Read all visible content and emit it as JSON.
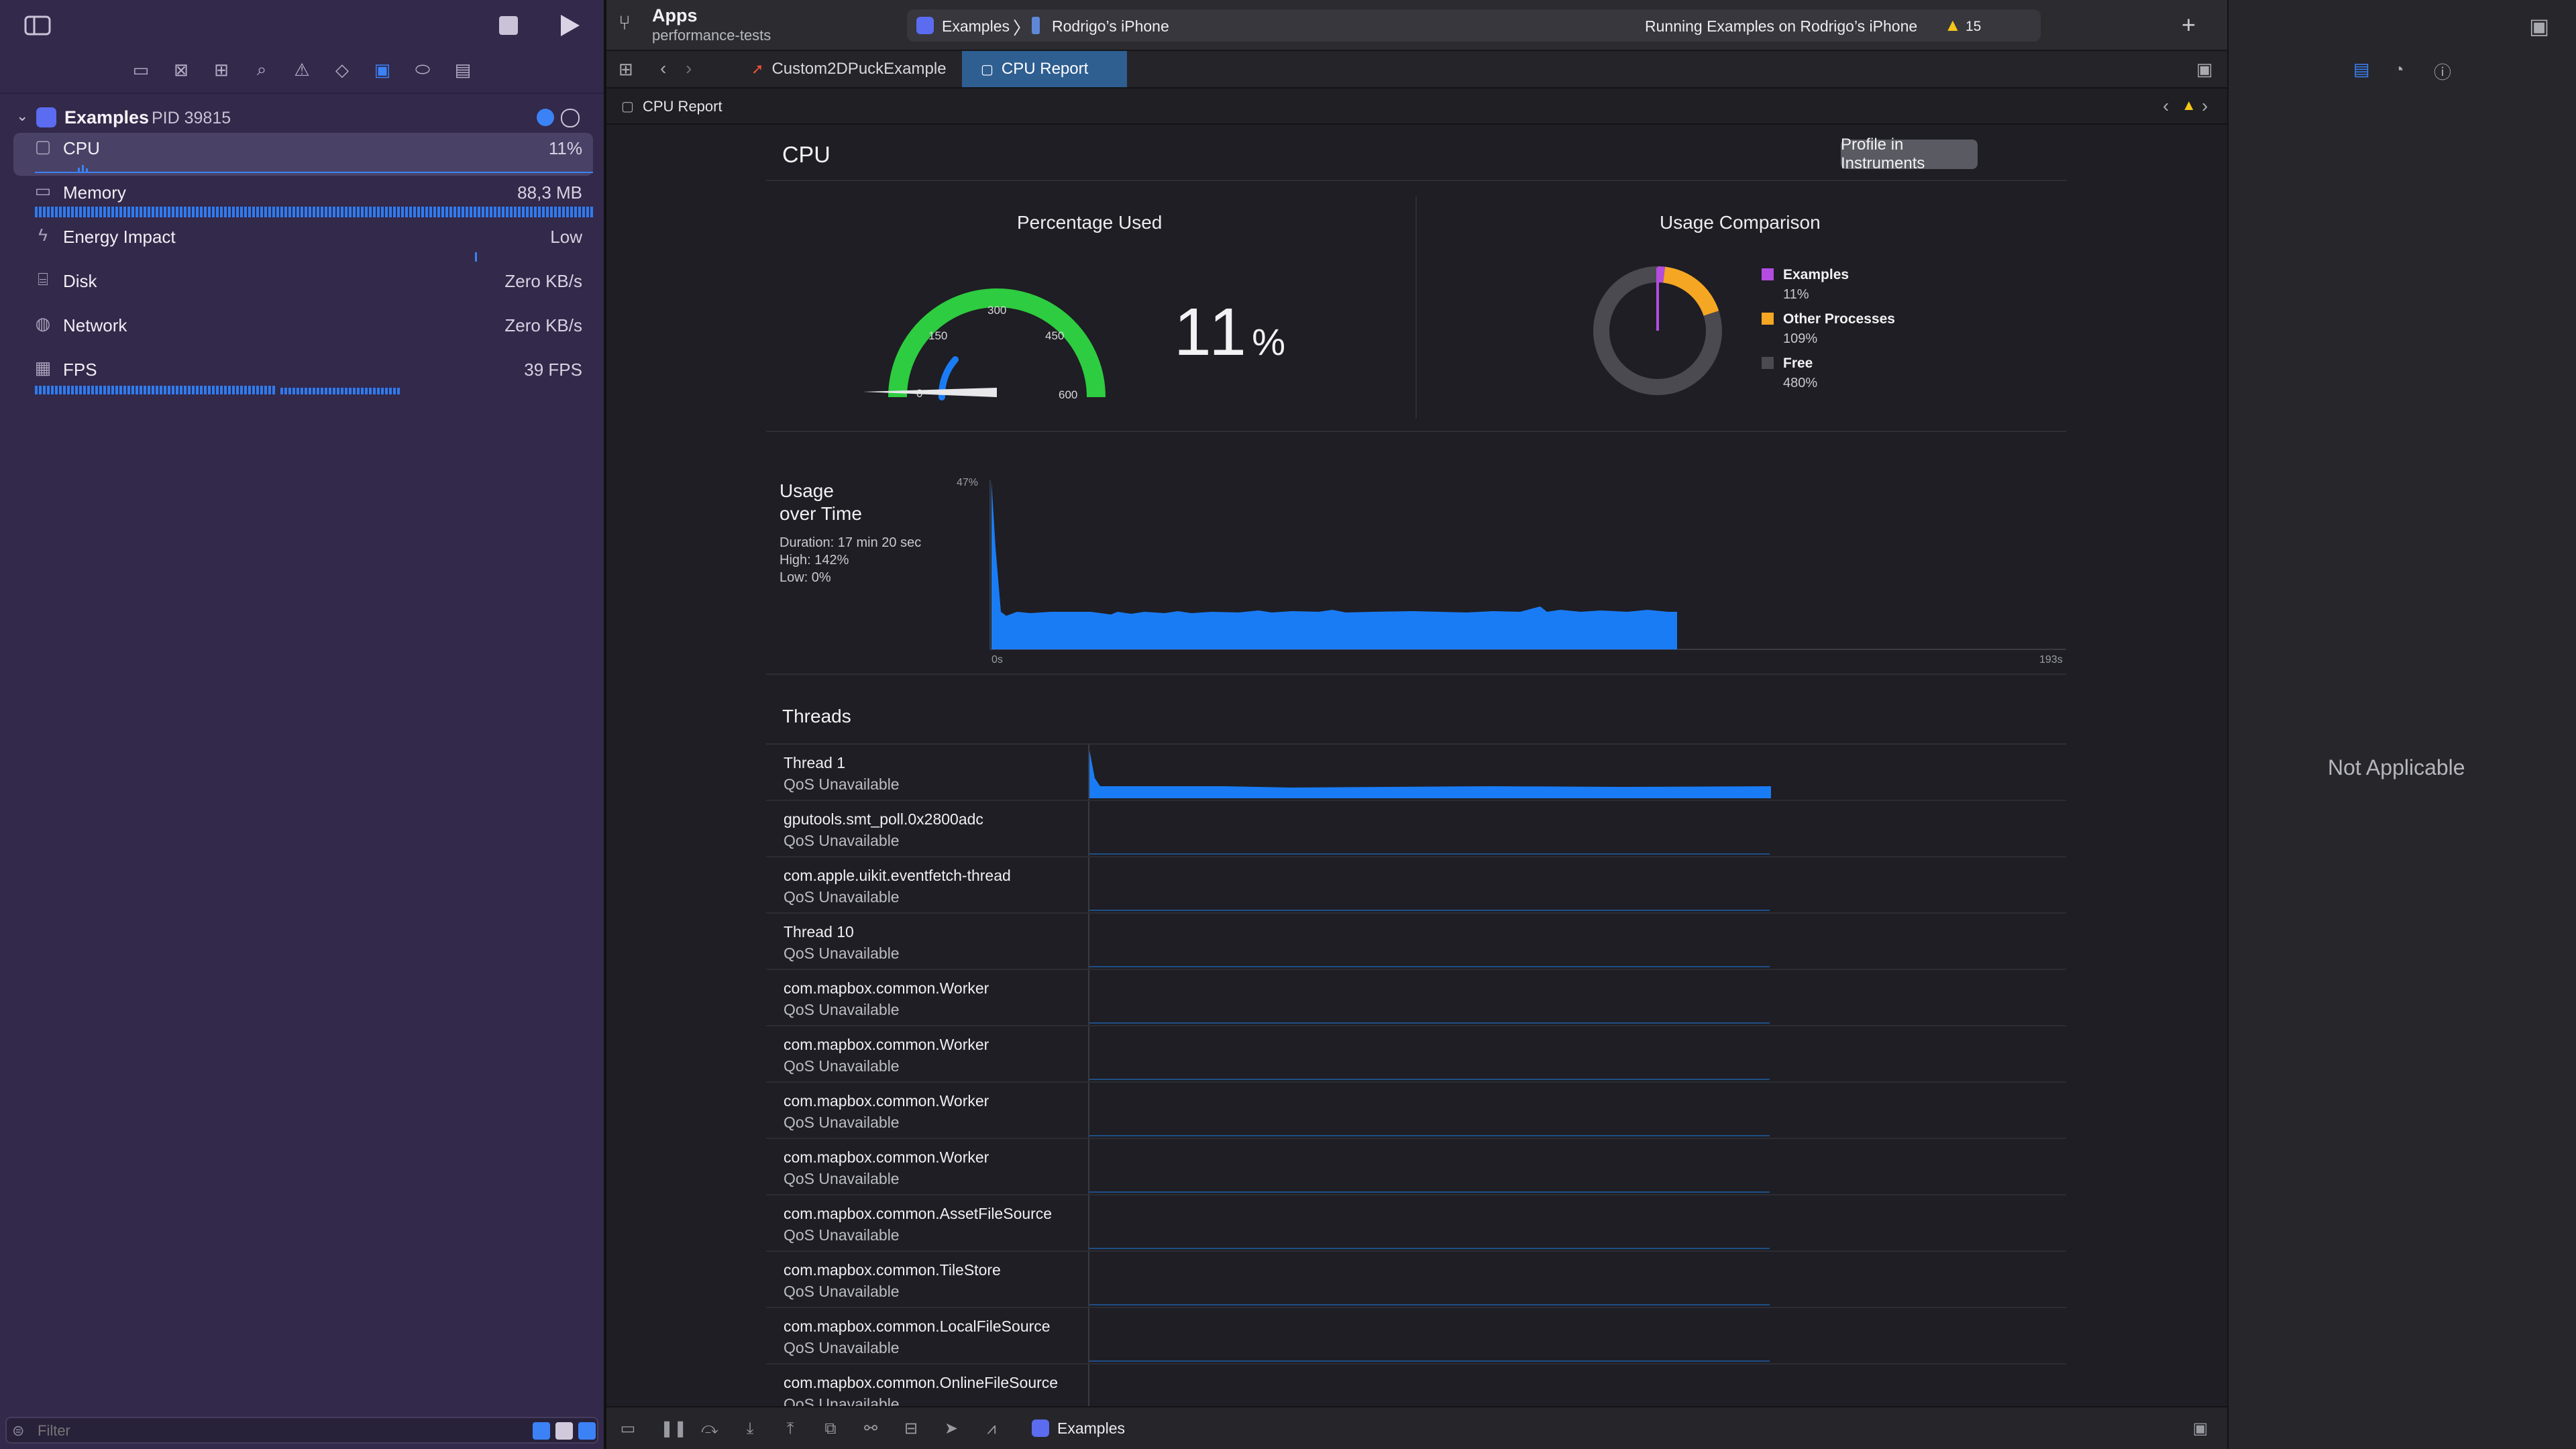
{
  "window": {
    "project_name": "Apps",
    "branch": "performance-tests"
  },
  "activity": {
    "scheme": "Examples",
    "destination": "Rodrigo’s iPhone",
    "status": "Running Examples on Rodrigo’s iPhone",
    "warning_count": "15"
  },
  "navigator": {
    "process_name": "Examples",
    "process_pid": "PID 39815",
    "gauges": [
      {
        "name": "CPU",
        "value": "11%",
        "icon": "cpu-icon"
      },
      {
        "name": "Memory",
        "value": "88,3 MB",
        "icon": "memory-icon"
      },
      {
        "name": "Energy Impact",
        "value": "Low",
        "icon": "bolt-icon"
      },
      {
        "name": "Disk",
        "value": "Zero KB/s",
        "icon": "disk-icon"
      },
      {
        "name": "Network",
        "value": "Zero KB/s",
        "icon": "globe-icon"
      },
      {
        "name": "FPS",
        "value": "39 FPS",
        "icon": "film-icon"
      }
    ],
    "filter_placeholder": "Filter"
  },
  "tabs": [
    {
      "label": "Custom2DPuckExample",
      "icon": "swift-icon",
      "active": false
    },
    {
      "label": "CPU Report",
      "icon": "cpu-icon",
      "active": true
    }
  ],
  "jumpbar": {
    "label": "CPU Report"
  },
  "report": {
    "title": "CPU",
    "profile_button": "Profile in Instruments",
    "percentage": {
      "title": "Percentage Used",
      "value": "11",
      "unit": "%",
      "gauge_ticks": [
        "0",
        "150",
        "300",
        "450",
        "600"
      ],
      "gauge_max": 600,
      "gauge_value": 11
    },
    "comparison": {
      "title": "Usage Comparison",
      "legend": [
        {
          "name": "Examples",
          "value": "11%",
          "color": "#b44ce0",
          "amount": 11
        },
        {
          "name": "Other Processes",
          "value": "109%",
          "color": "#f5a623",
          "amount": 109
        },
        {
          "name": "Free",
          "value": "480%",
          "color": "#4a4a50",
          "amount": 480
        }
      ]
    },
    "usage_over_time": {
      "title_line1": "Usage",
      "title_line2": "over Time",
      "duration": "Duration: 17 min 20 sec",
      "high": "High: 142%",
      "low": "Low: 0%",
      "y_label": "47%",
      "x_start": "0s",
      "x_end": "193s"
    },
    "threads_title": "Threads",
    "threads": [
      {
        "name": "Thread 1",
        "qos": "QoS Unavailable"
      },
      {
        "name": "gputools.smt_poll.0x2800adc",
        "qos": "QoS Unavailable"
      },
      {
        "name": "com.apple.uikit.eventfetch-thread",
        "qos": "QoS Unavailable"
      },
      {
        "name": "Thread 10",
        "qos": "QoS Unavailable"
      },
      {
        "name": "com.mapbox.common.Worker",
        "qos": "QoS Unavailable"
      },
      {
        "name": "com.mapbox.common.Worker",
        "qos": "QoS Unavailable"
      },
      {
        "name": "com.mapbox.common.Worker",
        "qos": "QoS Unavailable"
      },
      {
        "name": "com.mapbox.common.Worker",
        "qos": "QoS Unavailable"
      },
      {
        "name": "com.mapbox.common.AssetFileSource",
        "qos": "QoS Unavailable"
      },
      {
        "name": "com.mapbox.common.TileStore",
        "qos": "QoS Unavailable"
      },
      {
        "name": "com.mapbox.common.LocalFileSource",
        "qos": "QoS Unavailable"
      },
      {
        "name": "com.mapbox.common.OnlineFileSource",
        "qos": "QoS Unavailable"
      }
    ]
  },
  "inspector": {
    "message": "Not Applicable"
  },
  "debugbar": {
    "process_label": "Examples"
  },
  "colors": {
    "accent": "#3b82f6",
    "chart_blue": "#1a7cf5",
    "gauge_green": "#2ecc40",
    "navigator_bg": "#33294a"
  }
}
